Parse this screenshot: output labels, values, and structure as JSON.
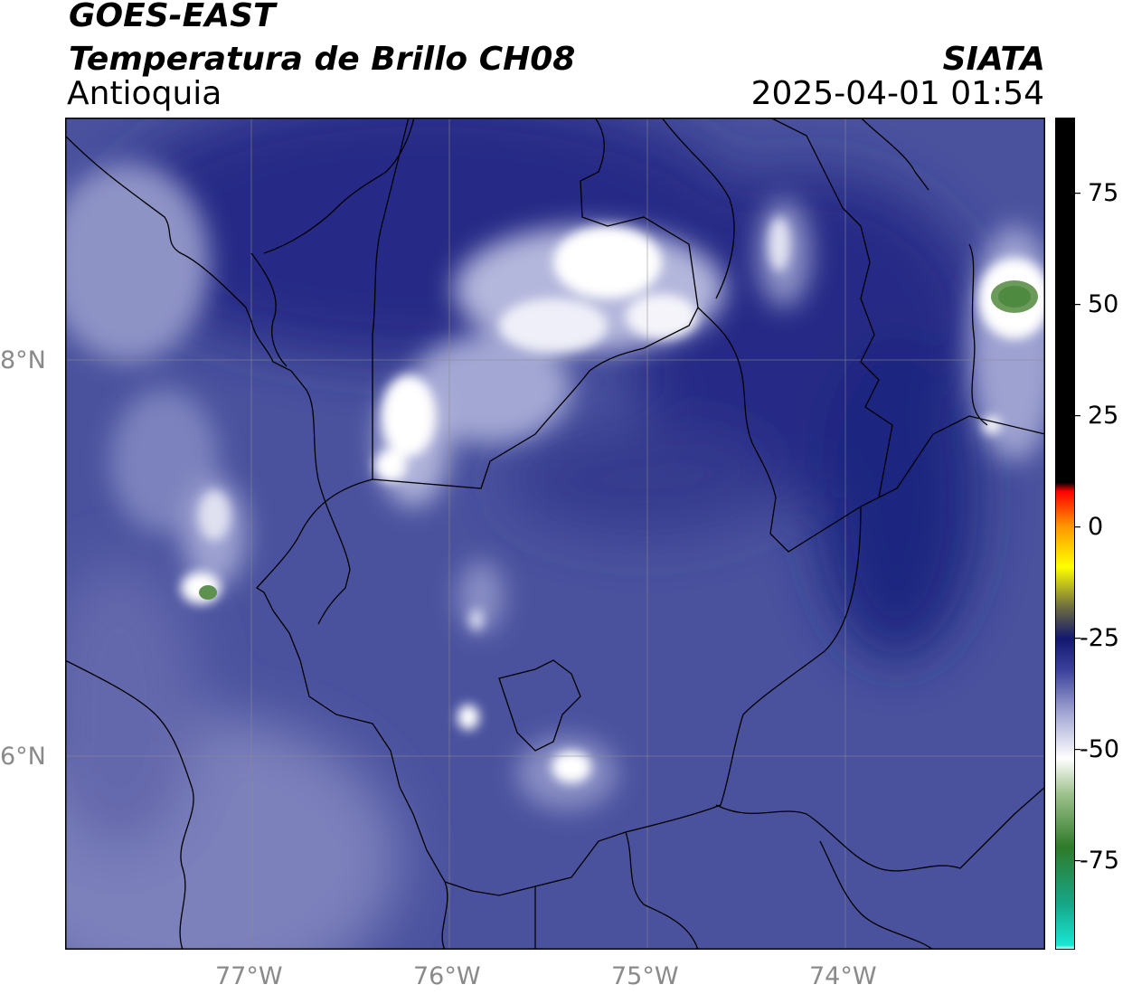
{
  "header": {
    "satellite": "GOES-EAST",
    "product": "Temperatura de Brillo CH08",
    "region": "Antioquia",
    "agency": "SIATA",
    "timestamp": "2025-04-01 01:54"
  },
  "map": {
    "lon_range": [
      -77.95,
      -73.0
    ],
    "lat_range": [
      5.0,
      9.2
    ],
    "x_ticks": [
      "77°W",
      "76°W",
      "75°W",
      "74°W"
    ],
    "y_ticks": [
      "8°N",
      "6°N"
    ],
    "background_color": "#4a529e",
    "border_color": "#000000"
  },
  "colorbar": {
    "range": [
      -95,
      92
    ],
    "ticks": [
      "75",
      "50",
      "25",
      "0",
      "-25",
      "-50",
      "-75"
    ],
    "stops": [
      {
        "value": -95,
        "color": "#ffffff"
      },
      {
        "value": -94,
        "color": "#19e6d4"
      },
      {
        "value": -85,
        "color": "#15a88a"
      },
      {
        "value": -72,
        "color": "#2f7a2a"
      },
      {
        "value": -60,
        "color": "#9ec28e"
      },
      {
        "value": -52,
        "color": "#ffffff"
      },
      {
        "value": -42,
        "color": "#a4a8d4"
      },
      {
        "value": -32,
        "color": "#3a3f9a"
      },
      {
        "value": -25,
        "color": "#13186e"
      },
      {
        "value": -18,
        "color": "#6d6d40"
      },
      {
        "value": -9,
        "color": "#ffff00"
      },
      {
        "value": 0,
        "color": "#ff9900"
      },
      {
        "value": 8,
        "color": "#ff0000"
      },
      {
        "value": 10,
        "color": "#000000"
      },
      {
        "value": 92,
        "color": "#000000"
      }
    ]
  }
}
